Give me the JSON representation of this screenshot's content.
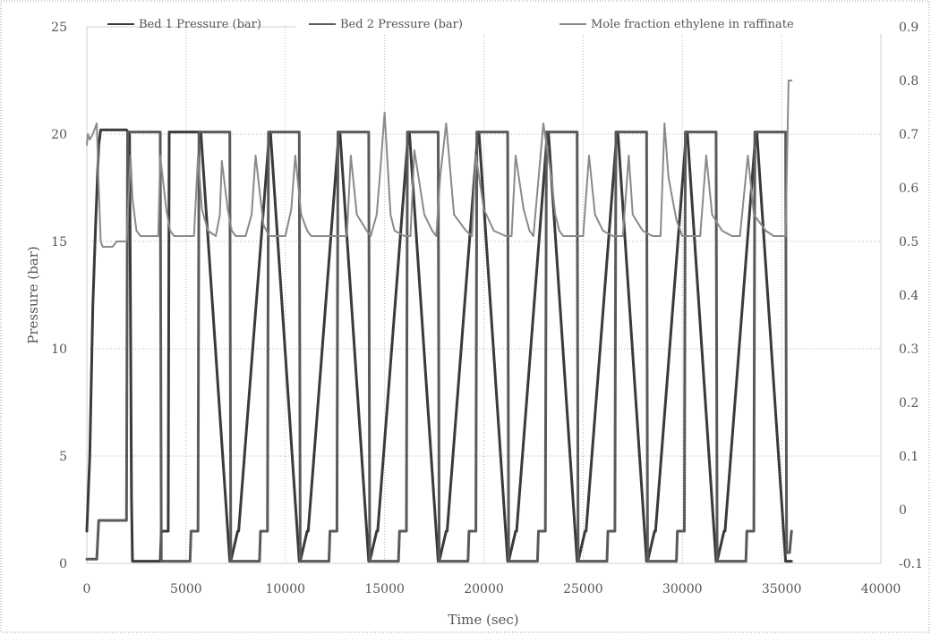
{
  "chart_data": {
    "type": "line",
    "title": "",
    "xlabel": "Time (sec)",
    "ylabel": "Pressure (bar)",
    "y2label": "",
    "xlim": [
      0,
      40000
    ],
    "ylim": [
      0,
      25
    ],
    "y2lim": [
      -0.1,
      0.9
    ],
    "xticks": [
      0,
      5000,
      10000,
      15000,
      20000,
      25000,
      30000,
      35000,
      40000
    ],
    "yticks": [
      0,
      5,
      10,
      15,
      20,
      25
    ],
    "y2ticks": [
      "-0.1",
      "0",
      "0.1",
      "0.2",
      "0.3",
      "0.4",
      "0.5",
      "0.6",
      "0.7",
      "0.8",
      "0.9"
    ],
    "grid": true,
    "legend_position": "top",
    "colors": {
      "bed1": "#3a3a3a",
      "bed2": "#5a5a5a",
      "ethylene": "#8a8a8a",
      "axis": "#555555"
    },
    "series": [
      {
        "name": "Bed 1 Pressure (bar)",
        "axis": "left",
        "x": [
          0,
          150,
          300,
          450,
          600,
          700,
          2000,
          2150,
          2250,
          2300,
          3700,
          3750,
          4100,
          4150,
          5700,
          5750,
          7200,
          7250,
          7600,
          7650,
          9200,
          9250,
          10700,
          10750,
          11100,
          11150,
          12700,
          12750,
          14200,
          14250,
          14600,
          14650,
          16200,
          16250,
          17700,
          17750,
          18100,
          18150,
          19700,
          19750,
          21200,
          21250,
          21600,
          21650,
          23200,
          23250,
          24700,
          24750,
          25100,
          25150,
          26700,
          26750,
          28200,
          28250,
          28600,
          28650,
          30200,
          30250,
          31700,
          31750,
          32100,
          32150,
          33700,
          33750,
          35200,
          35250,
          35500
        ],
        "y": [
          1.5,
          5,
          12,
          16,
          19.5,
          20.2,
          20.2,
          20,
          3,
          0.1,
          0.1,
          1.5,
          1.5,
          20.1,
          20.1,
          20,
          0.1,
          0.1,
          1.5,
          1.5,
          20.1,
          20.1,
          0.1,
          0.1,
          1.5,
          1.5,
          20.1,
          20.1,
          0.1,
          0.1,
          1.5,
          1.5,
          20.1,
          20.1,
          0.1,
          0.1,
          1.5,
          1.5,
          20.1,
          20.1,
          0.1,
          0.1,
          1.5,
          1.5,
          20.1,
          20.1,
          0.1,
          0.1,
          1.5,
          1.5,
          20.1,
          20.1,
          0.1,
          0.1,
          1.5,
          1.5,
          20.1,
          20.1,
          0.1,
          0.1,
          1.5,
          1.5,
          20.1,
          20.1,
          0.1,
          0.1,
          0.1
        ]
      },
      {
        "name": "Bed 2 Pressure (bar)",
        "axis": "left",
        "x": [
          0,
          500,
          600,
          2000,
          2050,
          2600,
          2650,
          3700,
          3750,
          5200,
          5250,
          5600,
          5650,
          7200,
          7250,
          8700,
          8750,
          9100,
          9150,
          10700,
          10750,
          12200,
          12250,
          12600,
          12650,
          14200,
          14250,
          15700,
          15750,
          16100,
          16150,
          17700,
          17750,
          19200,
          19250,
          19600,
          19650,
          21200,
          21250,
          22700,
          22750,
          23100,
          23150,
          24700,
          24750,
          26200,
          26250,
          26600,
          26650,
          28200,
          28250,
          29700,
          29750,
          30100,
          30150,
          31700,
          31750,
          33200,
          33250,
          33600,
          33650,
          35200,
          35250,
          35400,
          35500
        ],
        "y": [
          0.2,
          0.2,
          2,
          2,
          20.1,
          20.1,
          20.1,
          20.1,
          0.1,
          0.1,
          1.5,
          1.5,
          20.1,
          20.1,
          0.1,
          0.1,
          1.5,
          1.5,
          20.1,
          20.1,
          0.1,
          0.1,
          1.5,
          1.5,
          20.1,
          20.1,
          0.1,
          0.1,
          1.5,
          1.5,
          20.1,
          20.1,
          0.1,
          0.1,
          1.5,
          1.5,
          20.1,
          20.1,
          0.1,
          0.1,
          1.5,
          1.5,
          20.1,
          20.1,
          0.1,
          0.1,
          1.5,
          1.5,
          20.1,
          20.1,
          0.1,
          0.1,
          1.5,
          1.5,
          20.1,
          20.1,
          0.1,
          0.1,
          1.5,
          1.5,
          20.1,
          20.1,
          0.5,
          0.5,
          1.5
        ]
      },
      {
        "name": "Mole fraction ethylene in raffinate",
        "axis": "right",
        "x": [
          0,
          50,
          150,
          300,
          400,
          500,
          600,
          700,
          800,
          900,
          1100,
          1300,
          1500,
          2000,
          2200,
          2300,
          2500,
          2700,
          2900,
          3500,
          3600,
          3700,
          4000,
          4200,
          4400,
          5000,
          5400,
          5600,
          5800,
          6100,
          6500,
          6700,
          6800,
          7100,
          7300,
          7500,
          8000,
          8300,
          8500,
          8900,
          9200,
          9400,
          10000,
          10300,
          10500,
          10800,
          11100,
          11300,
          11600,
          12000,
          12600,
          13100,
          13300,
          13600,
          14100,
          14300,
          14600,
          14800,
          15000,
          15300,
          15500,
          16000,
          16300,
          16500,
          17000,
          17400,
          17600,
          17800,
          18100,
          18500,
          19100,
          19400,
          19600,
          20000,
          20500,
          21100,
          21400,
          21600,
          22000,
          22300,
          22500,
          23000,
          23400,
          23600,
          23800,
          24000,
          24500,
          25000,
          25300,
          25600,
          26000,
          26500,
          27000,
          27300,
          27500,
          28000,
          28500,
          28900,
          29100,
          29300,
          29700,
          30000,
          30500,
          30900,
          31200,
          31500,
          32000,
          32500,
          32900,
          33300,
          33600,
          34200,
          34600,
          34900,
          35100,
          35200,
          35350,
          35500
        ],
        "y": [
          0.68,
          0.7,
          0.69,
          0.7,
          0.71,
          0.72,
          0.6,
          0.5,
          0.49,
          0.49,
          0.49,
          0.49,
          0.5,
          0.5,
          0.66,
          0.58,
          0.52,
          0.51,
          0.51,
          0.51,
          0.51,
          0.66,
          0.56,
          0.52,
          0.51,
          0.51,
          0.51,
          0.66,
          0.56,
          0.52,
          0.51,
          0.55,
          0.65,
          0.56,
          0.52,
          0.51,
          0.51,
          0.55,
          0.66,
          0.53,
          0.51,
          0.51,
          0.51,
          0.56,
          0.66,
          0.55,
          0.52,
          0.51,
          0.51,
          0.51,
          0.51,
          0.51,
          0.66,
          0.55,
          0.52,
          0.51,
          0.55,
          0.64,
          0.74,
          0.55,
          0.52,
          0.51,
          0.51,
          0.67,
          0.55,
          0.52,
          0.51,
          0.62,
          0.72,
          0.55,
          0.52,
          0.51,
          0.66,
          0.56,
          0.52,
          0.51,
          0.51,
          0.66,
          0.56,
          0.52,
          0.51,
          0.72,
          0.62,
          0.55,
          0.52,
          0.51,
          0.51,
          0.51,
          0.66,
          0.55,
          0.52,
          0.51,
          0.51,
          0.66,
          0.55,
          0.52,
          0.51,
          0.51,
          0.72,
          0.62,
          0.54,
          0.51,
          0.51,
          0.51,
          0.66,
          0.55,
          0.52,
          0.51,
          0.51,
          0.66,
          0.55,
          0.52,
          0.51,
          0.51,
          0.51,
          0.51,
          0.8,
          0.8
        ]
      }
    ]
  }
}
